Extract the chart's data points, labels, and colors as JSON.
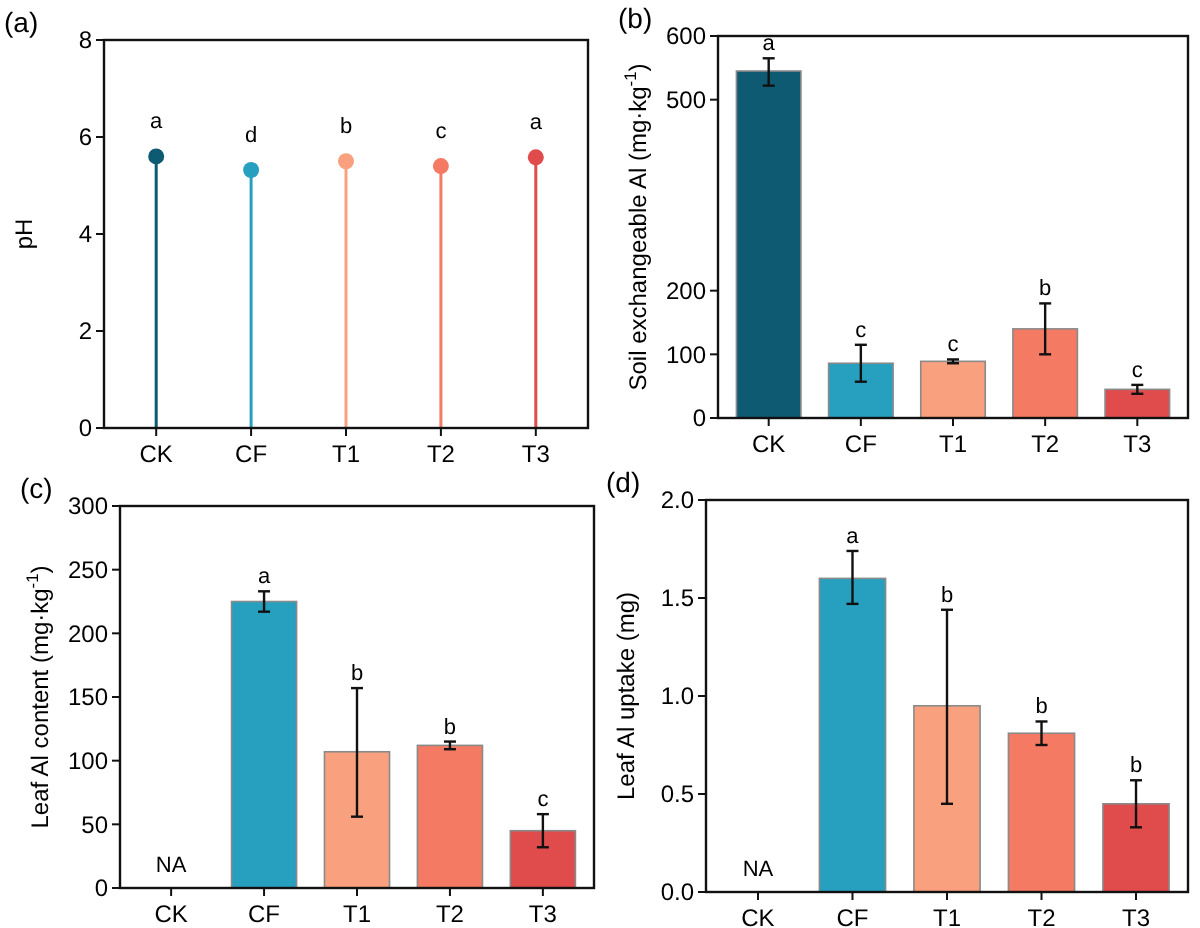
{
  "chart_data": [
    {
      "type": "lollipop",
      "title": "(a)",
      "ylabel": "pH",
      "categories": [
        "CK",
        "CF",
        "T1",
        "T2",
        "T3"
      ],
      "values": [
        5.6,
        5.32,
        5.5,
        5.4,
        5.58
      ],
      "colors": [
        "#0e5a73",
        "#27a0c0",
        "#f9a07e",
        "#f57a63",
        "#e04b4b"
      ],
      "ylim": [
        0,
        8
      ],
      "yticks": [
        0,
        2,
        4,
        6,
        8
      ],
      "marker": "circle",
      "annotations": [
        {
          "text": "a",
          "x": "CK",
          "y": 5.6
        },
        {
          "text": "d",
          "x": "CF",
          "y": 5.32
        },
        {
          "text": "b",
          "x": "T1",
          "y": 5.5
        },
        {
          "text": "c",
          "x": "T2",
          "y": 5.4
        },
        {
          "text": "a",
          "x": "T3",
          "y": 5.58
        }
      ]
    },
    {
      "type": "bar",
      "title": "(b)",
      "ylabel": "Soil exchangeable Al (mg·kg$^{-1}$)",
      "categories": [
        "CK",
        "CF",
        "T1",
        "T2",
        "T3"
      ],
      "values": [
        545,
        86,
        89,
        140,
        45
      ],
      "errors": [
        [
          522,
          565
        ],
        [
          57,
          115
        ],
        [
          86,
          92
        ],
        [
          100,
          180
        ],
        [
          38,
          52
        ]
      ],
      "colors": [
        "#0e5a73",
        "#27a0c0",
        "#f9a07e",
        "#f57a63",
        "#e04b4b"
      ],
      "ylim": [
        0,
        600
      ],
      "yticks": [
        0,
        100,
        200,
        500,
        600
      ],
      "annotations": [
        {
          "text": "a",
          "x": "CK",
          "y": 565
        },
        {
          "text": "c",
          "x": "CF",
          "y": 115
        },
        {
          "text": "c",
          "x": "T1",
          "y": 92
        },
        {
          "text": "b",
          "x": "T2",
          "y": 180
        },
        {
          "text": "c",
          "x": "T3",
          "y": 52
        }
      ]
    },
    {
      "type": "bar",
      "title": "(c)",
      "ylabel": "Leaf Al content (mg·kg$^{-1}$)",
      "categories": [
        "CK",
        "CF",
        "T1",
        "T2",
        "T3"
      ],
      "values": [
        null,
        225,
        107,
        112,
        45
      ],
      "errors": [
        null,
        [
          217,
          233
        ],
        [
          56,
          157
        ],
        [
          109,
          115
        ],
        [
          32,
          58
        ]
      ],
      "colors": [
        null,
        "#27a0c0",
        "#f9a07e",
        "#f57a63",
        "#e04b4b"
      ],
      "ylim": [
        0,
        300
      ],
      "yticks": [
        0,
        50,
        100,
        150,
        200,
        250,
        300
      ],
      "annotations": [
        "NA",
        {
          "text": "a",
          "x": "CF",
          "y": 233
        },
        {
          "text": "b",
          "x": "T1",
          "y": 157
        },
        {
          "text": "b",
          "x": "T2",
          "y": 115
        },
        {
          "text": "c",
          "x": "T3",
          "y": 58
        }
      ]
    },
    {
      "type": "bar",
      "title": "(d)",
      "ylabel": "Leaf Al uptake (mg)",
      "categories": [
        "CK",
        "CF",
        "T1",
        "T2",
        "T3"
      ],
      "values": [
        null,
        1.6,
        0.95,
        0.81,
        0.45
      ],
      "errors": [
        null,
        [
          1.47,
          1.74
        ],
        [
          0.45,
          1.44
        ],
        [
          0.75,
          0.87
        ],
        [
          0.33,
          0.57
        ]
      ],
      "colors": [
        null,
        "#27a0c0",
        "#f9a07e",
        "#f57a63",
        "#e04b4b"
      ],
      "ylim": [
        0,
        2
      ],
      "yticks": [
        {
          "value": 0,
          "label": "0.0"
        },
        {
          "value": 0.5,
          "label": "0.5"
        },
        {
          "value": 1,
          "label": "1.0"
        },
        {
          "value": 1.5,
          "label": "1.5"
        },
        {
          "value": 2,
          "label": "2.0"
        }
      ],
      "annotations": [
        "NA",
        {
          "text": "a",
          "x": "CF",
          "y": 1.74
        },
        {
          "text": "b",
          "x": "T1",
          "y": 1.44
        },
        {
          "text": "b",
          "x": "T2",
          "y": 0.87
        },
        {
          "text": "b",
          "x": "T3",
          "y": 0.57
        }
      ]
    }
  ]
}
